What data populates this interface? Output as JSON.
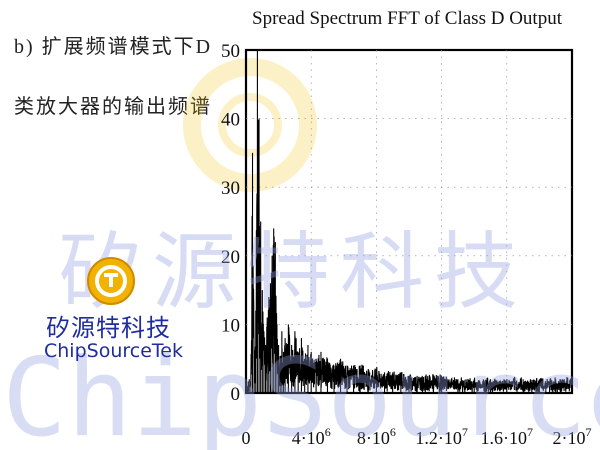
{
  "captions": [
    "b) 扩展频谱模式下D",
    "类放大器的输出频谱"
  ],
  "watermark": {
    "text_cn": "矽源特科技",
    "text_en": "ChipSourceTek"
  },
  "logo": {
    "text_cn": "矽源特科技",
    "text_en": "ChipSourceTek"
  },
  "colors": {
    "trace": "#000000",
    "watermark": "#9aa2e0",
    "logo_text": "#1f2d9c",
    "logo_circle": "#f2b200"
  },
  "chart_data": {
    "type": "line",
    "title": "Spread Spectrum FFT of Class D Output",
    "xlabel": "",
    "ylabel": "",
    "xlim": [
      0,
      20000000
    ],
    "ylim": [
      0,
      50
    ],
    "x_ticks": [
      0,
      4000000,
      8000000,
      12000000,
      16000000,
      20000000
    ],
    "x_tick_labels": [
      {
        "base": "0",
        "exp": ""
      },
      {
        "base": "4·10",
        "exp": "6"
      },
      {
        "base": "8·10",
        "exp": "6"
      },
      {
        "base": "1.2·10",
        "exp": "7"
      },
      {
        "base": "1.6·10",
        "exp": "7"
      },
      {
        "base": "2·10",
        "exp": "7"
      }
    ],
    "y_ticks": [
      0,
      10,
      20,
      30,
      40,
      50
    ],
    "y_tick_labels": [
      "0",
      "10",
      "20",
      "30",
      "40",
      "50"
    ],
    "grid": true,
    "series": [
      {
        "x": [
          0,
          100000,
          200000,
          300000,
          400000,
          500000,
          600000,
          700000,
          800000,
          900000,
          1000000,
          1100000,
          1200000,
          1300000,
          1400000,
          1500000,
          1600000,
          1700000,
          1800000,
          1900000,
          2000000,
          2100000,
          2200000,
          2300000,
          2400000,
          2600000,
          2800000,
          3000000,
          3200000,
          3400000,
          3600000,
          3800000,
          4000000,
          4300000,
          4600000,
          5000000,
          5400000,
          5800000,
          6200000,
          6600000,
          7000000,
          7500000,
          8000000,
          8500000,
          9000000,
          9500000,
          10000000,
          10500000,
          11000000,
          11500000,
          12000000,
          13000000,
          14000000,
          15000000,
          16000000,
          17000000,
          18000000,
          19000000,
          20000000
        ],
        "y": [
          0.5,
          1,
          2,
          3,
          35,
          6,
          12,
          50,
          40,
          25,
          15,
          9,
          7,
          11,
          14,
          16,
          20,
          24,
          22,
          10,
          7,
          5,
          9,
          6,
          8,
          10,
          7,
          9,
          6,
          8,
          5,
          7,
          6,
          5,
          6,
          5,
          4,
          5,
          4,
          4,
          4,
          3.5,
          3.5,
          3,
          3,
          3,
          2.5,
          2.5,
          2.5,
          2.5,
          2.5,
          2,
          2,
          2,
          2,
          2,
          2,
          2,
          2
        ]
      }
    ]
  }
}
